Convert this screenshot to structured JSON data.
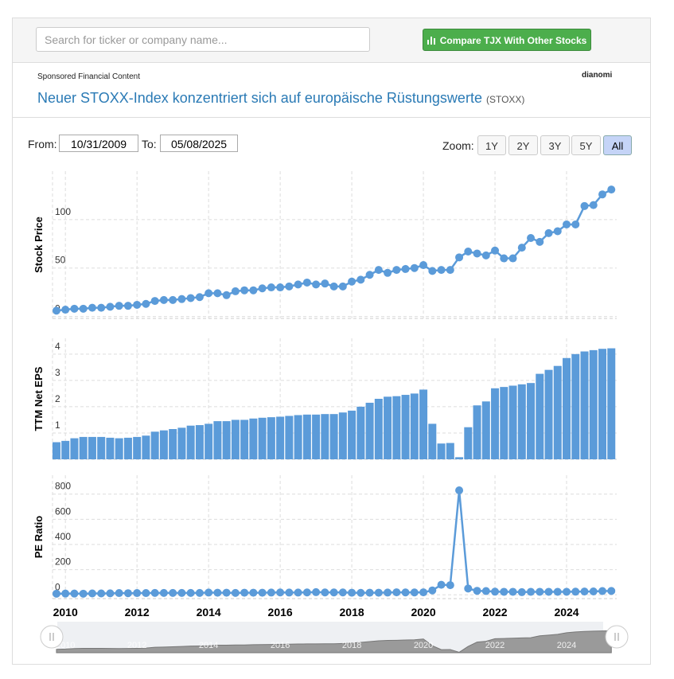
{
  "header": {
    "search_placeholder": "Search for ticker or company name...",
    "compare_button": "Compare TJX With Other Stocks"
  },
  "sponsored": {
    "label": "Sponsored Financial Content",
    "brand": "dianomi",
    "headline": "Neuer STOXX-Index konzentriert sich auf europäische Rüstungswerte",
    "source": "(STOXX)"
  },
  "controls": {
    "from_label": "From:",
    "from": "10/31/2009",
    "to_label": "To:",
    "to": "05/08/2025",
    "zoom_label": "Zoom:",
    "zoom_buttons": [
      "1Y",
      "2Y",
      "3Y",
      "5Y",
      "All"
    ]
  },
  "chart_data": [
    {
      "type": "line",
      "y_label": "Stock Price",
      "color": "#5b9bd9",
      "x": [
        2009.75,
        2010,
        2010.25,
        2010.5,
        2010.75,
        2011,
        2011.25,
        2011.5,
        2011.75,
        2012,
        2012.25,
        2012.5,
        2012.75,
        2013,
        2013.25,
        2013.5,
        2013.75,
        2014,
        2014.25,
        2014.5,
        2014.75,
        2015,
        2015.25,
        2015.5,
        2015.75,
        2016,
        2016.25,
        2016.5,
        2016.75,
        2017,
        2017.25,
        2017.5,
        2017.75,
        2018,
        2018.25,
        2018.5,
        2018.75,
        2019,
        2019.25,
        2019.5,
        2019.75,
        2020,
        2020.25,
        2020.5,
        2020.75,
        2021,
        2021.25,
        2021.5,
        2021.75,
        2022,
        2022.25,
        2022.5,
        2022.75,
        2023,
        2023.25,
        2023.5,
        2023.75,
        2024,
        2024.25,
        2024.5,
        2024.75,
        2025,
        2025.25
      ],
      "values": [
        6,
        7,
        8,
        8,
        9,
        9,
        10,
        11,
        11,
        12,
        13,
        16,
        17,
        17,
        18,
        19,
        20,
        24,
        24,
        22,
        26,
        27,
        27,
        29,
        30,
        30,
        31,
        33,
        35,
        33,
        34,
        31,
        31,
        36,
        38,
        43,
        48,
        45,
        48,
        49,
        50,
        53,
        47,
        48,
        48,
        61,
        67,
        65,
        63,
        68,
        60,
        60,
        71,
        81,
        77,
        86,
        88,
        95,
        95,
        114,
        115,
        126,
        131
      ],
      "xlim": [
        2009.64,
        2025.4
      ],
      "ylim": [
        -2,
        150
      ],
      "yticks": [
        0,
        50,
        100
      ]
    },
    {
      "type": "bar",
      "y_label": "TTM Net EPS",
      "color": "#5b9bd9",
      "x": [
        2009.75,
        2010,
        2010.25,
        2010.5,
        2010.75,
        2011,
        2011.25,
        2011.5,
        2011.75,
        2012,
        2012.25,
        2012.5,
        2012.75,
        2013,
        2013.25,
        2013.5,
        2013.75,
        2014,
        2014.25,
        2014.5,
        2014.75,
        2015,
        2015.25,
        2015.5,
        2015.75,
        2016,
        2016.25,
        2016.5,
        2016.75,
        2017,
        2017.25,
        2017.5,
        2017.75,
        2018,
        2018.25,
        2018.5,
        2018.75,
        2019,
        2019.25,
        2019.5,
        2019.75,
        2020,
        2020.25,
        2020.5,
        2020.75,
        2021,
        2021.25,
        2021.5,
        2021.75,
        2022,
        2022.25,
        2022.5,
        2022.75,
        2023,
        2023.25,
        2023.5,
        2023.75,
        2024,
        2024.25,
        2024.5,
        2024.75,
        2025,
        2025.25
      ],
      "values": [
        0.65,
        0.7,
        0.8,
        0.85,
        0.85,
        0.85,
        0.82,
        0.8,
        0.82,
        0.85,
        0.9,
        1.05,
        1.1,
        1.15,
        1.2,
        1.28,
        1.3,
        1.35,
        1.45,
        1.45,
        1.5,
        1.5,
        1.55,
        1.58,
        1.6,
        1.62,
        1.65,
        1.68,
        1.7,
        1.7,
        1.72,
        1.72,
        1.78,
        1.85,
        2.0,
        2.15,
        2.3,
        2.38,
        2.4,
        2.45,
        2.5,
        2.65,
        1.35,
        0.6,
        0.62,
        0.08,
        1.22,
        2.05,
        2.2,
        2.7,
        2.75,
        2.8,
        2.85,
        2.9,
        3.25,
        3.4,
        3.55,
        3.85,
        4.0,
        4.1,
        4.15,
        4.2,
        4.22
      ],
      "xlim": [
        2009.64,
        2025.4
      ],
      "ylim": [
        0,
        4.6
      ],
      "yticks": [
        0,
        1,
        2,
        3,
        4
      ]
    },
    {
      "type": "line",
      "y_label": "PE Ratio",
      "color": "#5b9bd9",
      "x": [
        2009.75,
        2010,
        2010.25,
        2010.5,
        2010.75,
        2011,
        2011.25,
        2011.5,
        2011.75,
        2012,
        2012.25,
        2012.5,
        2012.75,
        2013,
        2013.25,
        2013.5,
        2013.75,
        2014,
        2014.25,
        2014.5,
        2014.75,
        2015,
        2015.25,
        2015.5,
        2015.75,
        2016,
        2016.25,
        2016.5,
        2016.75,
        2017,
        2017.25,
        2017.5,
        2017.75,
        2018,
        2018.25,
        2018.5,
        2018.75,
        2019,
        2019.25,
        2019.5,
        2019.75,
        2020,
        2020.25,
        2020.5,
        2020.75,
        2021,
        2021.25,
        2021.5,
        2021.75,
        2022,
        2022.25,
        2022.5,
        2022.75,
        2023,
        2023.25,
        2023.5,
        2023.75,
        2024,
        2024.25,
        2024.5,
        2024.75,
        2025,
        2025.25
      ],
      "values": [
        9,
        10,
        10,
        9,
        11,
        11,
        12,
        14,
        13,
        14,
        14,
        15,
        15,
        15,
        15,
        15,
        15,
        18,
        17,
        17,
        15,
        17,
        17,
        17,
        18,
        19,
        18,
        18,
        19,
        21,
        19,
        19,
        19,
        17,
        16,
        17,
        17,
        18,
        20,
        19,
        19,
        20,
        35,
        80,
        77,
        830,
        50,
        32,
        30,
        25,
        24,
        24,
        21,
        24,
        24,
        24,
        24,
        24,
        25,
        26,
        27,
        30,
        31
      ],
      "xlim": [
        2009.64,
        2025.4
      ],
      "ylim": [
        -30,
        950
      ],
      "yticks": [
        0,
        200,
        400,
        600,
        800
      ],
      "xticks": [
        2010,
        2012,
        2014,
        2016,
        2018,
        2020,
        2022,
        2024
      ]
    }
  ]
}
